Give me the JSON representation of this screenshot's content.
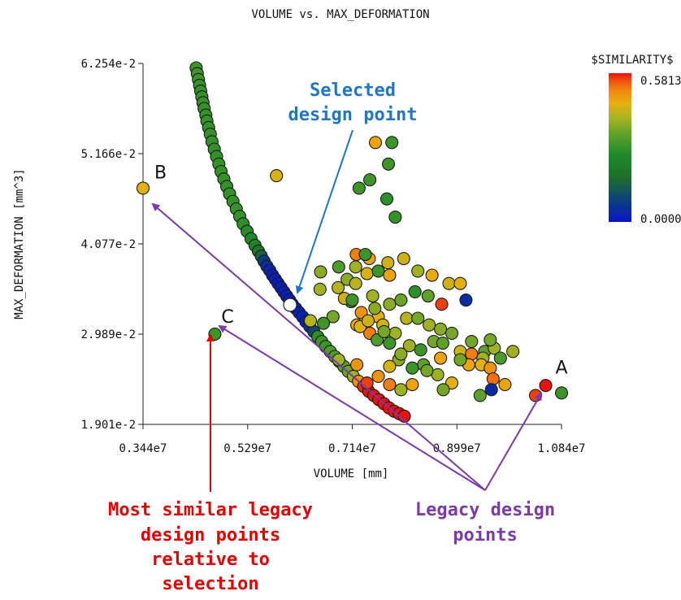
{
  "chart_data": {
    "type": "scatter",
    "title": "VOLUME vs. MAX_DEFORMATION",
    "xlabel": "VOLUME [mm]",
    "ylabel": "MAX_DEFORMATION [mm^3]",
    "xlim": [
      0.344,
      1.084
    ],
    "ylim": [
      0.01901,
      0.06254
    ],
    "x_unit_note": "x values in units of 1e7",
    "x_ticks": [
      "0.344e7",
      "0.529e7",
      "0.714e7",
      "0.899e7",
      "1.084e7"
    ],
    "y_ticks": [
      "1.901e-2",
      "2.989e-2",
      "4.077e-2",
      "5.166e-2",
      "6.254e-2"
    ],
    "colorbar": {
      "title": "$SIMILARITY$",
      "max_label": "0.5813",
      "min_label": "0.0000",
      "range": [
        0.0,
        0.5813
      ],
      "colors": [
        "#0a14c8",
        "#0a3a8a",
        "#1e6e2a",
        "#1f8a2a",
        "#5aa02a",
        "#a8b422",
        "#e8b010",
        "#f08a10",
        "#f05010",
        "#e81010"
      ]
    },
    "colors": {
      "point_outline": "#1a1a1a",
      "selected_annotation": "#1f77c4",
      "similar_annotation": "#e00000",
      "legacy_annotation": "#7a3aa8"
    },
    "series": [
      {
        "points": [
          [
            0.438,
            0.062,
            0.3
          ],
          [
            0.44,
            0.0613,
            0.3
          ],
          [
            0.442,
            0.0606,
            0.3
          ],
          [
            0.444,
            0.0599,
            0.29
          ],
          [
            0.446,
            0.0592,
            0.29
          ],
          [
            0.448,
            0.0585,
            0.29
          ],
          [
            0.45,
            0.0578,
            0.29
          ],
          [
            0.452,
            0.0571,
            0.29
          ],
          [
            0.455,
            0.0563,
            0.29
          ],
          [
            0.457,
            0.0556,
            0.29
          ],
          [
            0.46,
            0.0548,
            0.29
          ],
          [
            0.463,
            0.054,
            0.29
          ],
          [
            0.466,
            0.0531,
            0.29
          ],
          [
            0.47,
            0.0522,
            0.29
          ],
          [
            0.474,
            0.0513,
            0.29
          ],
          [
            0.478,
            0.0504,
            0.29
          ],
          [
            0.482,
            0.0495,
            0.29
          ],
          [
            0.487,
            0.0486,
            0.29
          ],
          [
            0.492,
            0.0477,
            0.29
          ],
          [
            0.497,
            0.0468,
            0.29
          ],
          [
            0.503,
            0.0459,
            0.29
          ],
          [
            0.509,
            0.045,
            0.29
          ],
          [
            0.515,
            0.0441,
            0.29
          ],
          [
            0.521,
            0.0432,
            0.28
          ],
          [
            0.528,
            0.0423,
            0.27
          ],
          [
            0.535,
            0.0414,
            0.26
          ],
          [
            0.542,
            0.0406,
            0.24
          ],
          [
            0.548,
            0.0399,
            0.2
          ],
          [
            0.553,
            0.0393,
            0.15
          ],
          [
            0.558,
            0.0387,
            0.08
          ],
          [
            0.563,
            0.0381,
            0.05
          ],
          [
            0.568,
            0.0376,
            0.03
          ],
          [
            0.573,
            0.037,
            0.02
          ],
          [
            0.578,
            0.0365,
            0.02
          ],
          [
            0.583,
            0.036,
            0.02
          ],
          [
            0.588,
            0.0355,
            0.02
          ],
          [
            0.593,
            0.035,
            0.02
          ],
          [
            0.598,
            0.0345,
            0.02
          ],
          [
            0.603,
            0.034,
            0.02
          ],
          [
            0.608,
            0.0335,
            0.02
          ],
          [
            0.614,
            0.033,
            0.02
          ],
          [
            0.62,
            0.0325,
            0.02
          ],
          [
            0.626,
            0.032,
            0.02
          ],
          [
            0.632,
            0.0314,
            0.03
          ],
          [
            0.639,
            0.0308,
            0.05
          ],
          [
            0.646,
            0.0302,
            0.1
          ],
          [
            0.653,
            0.0296,
            0.28
          ],
          [
            0.66,
            0.029,
            0.3
          ],
          [
            0.667,
            0.0284,
            0.3
          ],
          [
            0.675,
            0.0278,
            0.32
          ],
          [
            0.683,
            0.0272,
            0.32
          ],
          [
            0.691,
            0.0266,
            0.33
          ],
          [
            0.699,
            0.026,
            0.34
          ],
          [
            0.707,
            0.0254,
            0.35
          ],
          [
            0.716,
            0.0248,
            0.4
          ],
          [
            0.725,
            0.0242,
            0.5
          ],
          [
            0.734,
            0.0236,
            0.57
          ],
          [
            0.743,
            0.023,
            0.58
          ],
          [
            0.752,
            0.0225,
            0.58
          ],
          [
            0.761,
            0.022,
            0.58
          ],
          [
            0.77,
            0.0215,
            0.58
          ],
          [
            0.779,
            0.021,
            0.58
          ],
          [
            0.788,
            0.0206,
            0.58
          ],
          [
            0.797,
            0.0203,
            0.58
          ],
          [
            0.806,
            0.02,
            0.58
          ],
          [
            0.58,
            0.049,
            0.45
          ],
          [
            0.726,
            0.0475,
            0.3
          ],
          [
            0.745,
            0.0485,
            0.3
          ],
          [
            0.778,
            0.0504,
            0.3
          ],
          [
            0.784,
            0.053,
            0.3
          ],
          [
            0.755,
            0.053,
            0.48
          ],
          [
            0.775,
            0.0462,
            0.28
          ],
          [
            0.79,
            0.044,
            0.29
          ],
          [
            0.69,
            0.038,
            0.32
          ],
          [
            0.658,
            0.0374,
            0.38
          ],
          [
            0.657,
            0.0353,
            0.4
          ],
          [
            0.689,
            0.0355,
            0.42
          ],
          [
            0.705,
            0.0365,
            0.38
          ],
          [
            0.72,
            0.038,
            0.4
          ],
          [
            0.74,
            0.0372,
            0.45
          ],
          [
            0.76,
            0.0375,
            0.3
          ],
          [
            0.78,
            0.037,
            0.48
          ],
          [
            0.72,
            0.036,
            0.42
          ],
          [
            0.75,
            0.0345,
            0.4
          ],
          [
            0.73,
            0.0325,
            0.5
          ],
          [
            0.76,
            0.032,
            0.46
          ],
          [
            0.78,
            0.0335,
            0.38
          ],
          [
            0.8,
            0.034,
            0.35
          ],
          [
            0.825,
            0.035,
            0.28
          ],
          [
            0.848,
            0.0345,
            0.34
          ],
          [
            0.872,
            0.0335,
            0.56
          ],
          [
            0.885,
            0.036,
            0.44
          ],
          [
            0.905,
            0.036,
            0.46
          ],
          [
            0.915,
            0.034,
            0.05
          ],
          [
            0.855,
            0.037,
            0.47
          ],
          [
            0.83,
            0.0375,
            0.4
          ],
          [
            0.68,
            0.032,
            0.36
          ],
          [
            0.64,
            0.0315,
            0.42
          ],
          [
            0.722,
            0.031,
            0.48
          ],
          [
            0.745,
            0.03,
            0.52
          ],
          [
            0.768,
            0.031,
            0.44
          ],
          [
            0.79,
            0.03,
            0.4
          ],
          [
            0.81,
            0.0318,
            0.42
          ],
          [
            0.83,
            0.0318,
            0.36
          ],
          [
            0.85,
            0.031,
            0.4
          ],
          [
            0.87,
            0.0305,
            0.38
          ],
          [
            0.89,
            0.03,
            0.36
          ],
          [
            0.858,
            0.029,
            0.36
          ],
          [
            0.874,
            0.0288,
            0.34
          ],
          [
            0.905,
            0.0278,
            0.44
          ],
          [
            0.925,
            0.0275,
            0.52
          ],
          [
            0.948,
            0.0278,
            0.34
          ],
          [
            0.965,
            0.0282,
            0.4
          ],
          [
            0.998,
            0.0278,
            0.4
          ],
          [
            0.976,
            0.027,
            0.32
          ],
          [
            0.958,
            0.0292,
            0.36
          ],
          [
            0.945,
            0.027,
            0.4
          ],
          [
            0.92,
            0.0262,
            0.48
          ],
          [
            0.942,
            0.0262,
            0.46
          ],
          [
            0.958,
            0.0258,
            0.5
          ],
          [
            0.963,
            0.0245,
            0.53
          ],
          [
            0.984,
            0.0238,
            0.48
          ],
          [
            0.96,
            0.0232,
            0.04
          ],
          [
            0.94,
            0.0225,
            0.34
          ],
          [
            0.89,
            0.024,
            0.46
          ],
          [
            0.865,
            0.025,
            0.4
          ],
          [
            0.84,
            0.0262,
            0.34
          ],
          [
            0.82,
            0.0258,
            0.3
          ],
          [
            0.796,
            0.0268,
            0.38
          ],
          [
            0.78,
            0.026,
            0.45
          ],
          [
            0.76,
            0.0248,
            0.5
          ],
          [
            0.74,
            0.024,
            0.56
          ],
          [
            0.722,
            0.0262,
            0.5
          ],
          [
            0.69,
            0.0268,
            0.4
          ],
          [
            0.815,
            0.0285,
            0.4
          ],
          [
            0.78,
            0.0288,
            0.3
          ],
          [
            0.758,
            0.0292,
            0.32
          ],
          [
            0.8,
            0.0275,
            0.38
          ],
          [
            0.835,
            0.028,
            0.3
          ],
          [
            0.846,
            0.0255,
            0.36
          ],
          [
            0.87,
            0.027,
            0.48
          ],
          [
            0.905,
            0.0268,
            0.36
          ],
          [
            0.925,
            0.029,
            0.36
          ],
          [
            0.875,
            0.0232,
            0.36
          ],
          [
            0.82,
            0.0238,
            0.48
          ],
          [
            0.8,
            0.0232,
            0.4
          ],
          [
            0.78,
            0.0238,
            0.52
          ],
          [
            0.663,
            0.0312,
            0.3
          ],
          [
            0.712,
            0.0338,
            0.3
          ],
          [
            0.7,
            0.0342,
            0.44
          ],
          [
            0.728,
            0.0308,
            0.46
          ],
          [
            0.754,
            0.033,
            0.38
          ],
          [
            0.742,
            0.0315,
            0.44
          ],
          [
            0.77,
            0.0302,
            0.36
          ],
          [
            0.744,
            0.039,
            0.48
          ],
          [
            0.777,
            0.0385,
            0.44
          ],
          [
            0.805,
            0.039,
            0.44
          ],
          [
            0.721,
            0.0395,
            0.52
          ],
          [
            0.737,
            0.0395,
            0.3
          ],
          [
            0.714,
            0.034,
            0.3
          ],
          [
            1.056,
            0.0237,
            0.58
          ],
          [
            1.084,
            0.0228,
            0.3
          ],
          [
            1.038,
            0.0225,
            0.56
          ],
          [
            0.344,
            0.0475,
            0.46
          ],
          [
            0.471,
            0.0299,
            0.3
          ]
        ]
      }
    ],
    "point_labels": [
      {
        "text": "A",
        "x": 1.084,
        "y": 0.0228
      },
      {
        "text": "B",
        "x": 0.344,
        "y": 0.0475
      },
      {
        "text": "C",
        "x": 0.471,
        "y": 0.0299
      }
    ],
    "annotations": {
      "selected": [
        "Selected",
        "design point"
      ],
      "similar": [
        "Most similar legacy",
        "design points",
        "relative to",
        "selection"
      ],
      "legacy": [
        "Legacy design",
        "points"
      ]
    }
  }
}
